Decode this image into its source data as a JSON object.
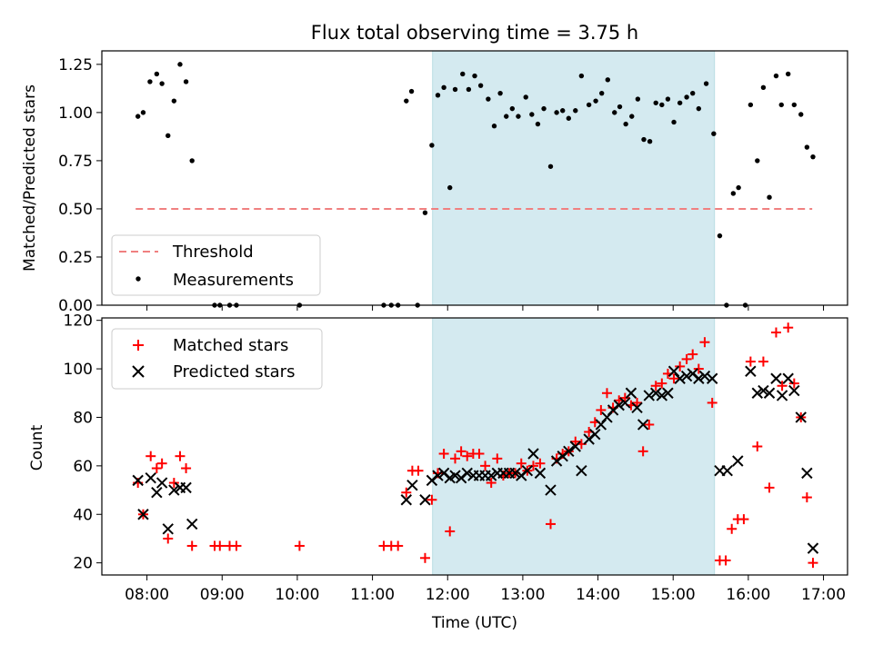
{
  "chart_data": {
    "type": "scatter",
    "title": "Flux total observing time = 3.75 h",
    "xlabel": "Time (UTC)",
    "x_ticks": [
      "08:00",
      "09:00",
      "10:00",
      "11:00",
      "12:00",
      "13:00",
      "14:00",
      "15:00",
      "16:00",
      "17:00"
    ],
    "xlim": [
      7.4,
      17.32
    ],
    "shaded_region": {
      "start": 11.8,
      "end": 15.55,
      "color": "#d4eaf0"
    },
    "panels": [
      {
        "ylabel": "Matched/Predicted stars",
        "ylim": [
          0,
          1.32
        ],
        "yticks": [
          "0.00",
          "0.25",
          "0.50",
          "0.75",
          "1.00",
          "1.25"
        ],
        "threshold": {
          "name": "Threshold",
          "value": 0.5,
          "x_range": [
            7.85,
            16.85
          ],
          "color": "#f08080"
        },
        "legend_position": "lower-left",
        "series": [
          {
            "name": "Measurements",
            "color": "#000000",
            "marker": "dot",
            "points": [
              [
                7.88,
                0.98
              ],
              [
                7.95,
                1.0
              ],
              [
                8.04,
                1.16
              ],
              [
                8.13,
                1.2
              ],
              [
                8.2,
                1.15
              ],
              [
                8.28,
                0.88
              ],
              [
                8.36,
                1.06
              ],
              [
                8.44,
                1.25
              ],
              [
                8.52,
                1.16
              ],
              [
                8.6,
                0.75
              ],
              [
                8.9,
                0.0
              ],
              [
                8.97,
                0.0
              ],
              [
                9.1,
                0.0
              ],
              [
                9.19,
                0.0
              ],
              [
                10.03,
                0.0
              ],
              [
                11.15,
                0.0
              ],
              [
                11.25,
                0.0
              ],
              [
                11.34,
                0.0
              ],
              [
                11.45,
                1.06
              ],
              [
                11.52,
                1.11
              ],
              [
                11.6,
                0.0
              ],
              [
                11.7,
                0.48
              ],
              [
                11.79,
                0.83
              ],
              [
                11.87,
                1.09
              ],
              [
                11.95,
                1.13
              ],
              [
                12.03,
                0.61
              ],
              [
                12.1,
                1.12
              ],
              [
                12.2,
                1.2
              ],
              [
                12.28,
                1.12
              ],
              [
                12.36,
                1.19
              ],
              [
                12.44,
                1.14
              ],
              [
                12.54,
                1.07
              ],
              [
                12.62,
                0.93
              ],
              [
                12.7,
                1.1
              ],
              [
                12.78,
                0.98
              ],
              [
                12.86,
                1.02
              ],
              [
                12.94,
                0.98
              ],
              [
                13.04,
                1.08
              ],
              [
                13.12,
                0.99
              ],
              [
                13.2,
                0.94
              ],
              [
                13.28,
                1.02
              ],
              [
                13.37,
                0.72
              ],
              [
                13.45,
                1.0
              ],
              [
                13.53,
                1.01
              ],
              [
                13.61,
                0.97
              ],
              [
                13.7,
                1.01
              ],
              [
                13.78,
                1.19
              ],
              [
                13.88,
                1.04
              ],
              [
                13.97,
                1.06
              ],
              [
                14.05,
                1.1
              ],
              [
                14.13,
                1.17
              ],
              [
                14.22,
                1.0
              ],
              [
                14.29,
                1.03
              ],
              [
                14.37,
                0.94
              ],
              [
                14.45,
                0.98
              ],
              [
                14.53,
                1.07
              ],
              [
                14.61,
                0.86
              ],
              [
                14.69,
                0.85
              ],
              [
                14.77,
                1.05
              ],
              [
                14.85,
                1.04
              ],
              [
                14.93,
                1.07
              ],
              [
                15.01,
                0.95
              ],
              [
                15.09,
                1.05
              ],
              [
                15.18,
                1.08
              ],
              [
                15.26,
                1.1
              ],
              [
                15.34,
                1.02
              ],
              [
                15.44,
                1.15
              ],
              [
                15.54,
                0.89
              ],
              [
                15.62,
                0.36
              ],
              [
                15.71,
                0.0
              ],
              [
                15.8,
                0.58
              ],
              [
                15.87,
                0.61
              ],
              [
                15.96,
                0.0
              ],
              [
                16.03,
                1.04
              ],
              [
                16.12,
                0.75
              ],
              [
                16.2,
                1.13
              ],
              [
                16.28,
                0.56
              ],
              [
                16.37,
                1.19
              ],
              [
                16.44,
                1.04
              ],
              [
                16.53,
                1.2
              ],
              [
                16.61,
                1.04
              ],
              [
                16.7,
                0.99
              ],
              [
                16.78,
                0.82
              ],
              [
                16.86,
                0.77
              ]
            ]
          }
        ]
      },
      {
        "ylabel": "Count",
        "ylim": [
          15,
          121
        ],
        "yticks": [
          "20",
          "40",
          "60",
          "80",
          "100",
          "120"
        ],
        "legend_position": "upper-left",
        "series": [
          {
            "name": "Matched stars",
            "color": "#ff0000",
            "marker": "plus",
            "points": [
              [
                7.88,
                53
              ],
              [
                7.95,
                40
              ],
              [
                8.05,
                64
              ],
              [
                8.13,
                59
              ],
              [
                8.2,
                61
              ],
              [
                8.28,
                30
              ],
              [
                8.36,
                53
              ],
              [
                8.44,
                64
              ],
              [
                8.52,
                59
              ],
              [
                8.6,
                27
              ],
              [
                8.9,
                27
              ],
              [
                8.97,
                27
              ],
              [
                9.1,
                27
              ],
              [
                9.19,
                27
              ],
              [
                10.03,
                27
              ],
              [
                11.15,
                27
              ],
              [
                11.25,
                27
              ],
              [
                11.34,
                27
              ],
              [
                11.45,
                49
              ],
              [
                11.53,
                58
              ],
              [
                11.61,
                58
              ],
              [
                11.7,
                22
              ],
              [
                11.79,
                46
              ],
              [
                11.87,
                57
              ],
              [
                11.95,
                65
              ],
              [
                12.03,
                33
              ],
              [
                12.1,
                63
              ],
              [
                12.18,
                66
              ],
              [
                12.26,
                64
              ],
              [
                12.34,
                65
              ],
              [
                12.42,
                65
              ],
              [
                12.5,
                60
              ],
              [
                12.58,
                53
              ],
              [
                12.66,
                63
              ],
              [
                12.74,
                56
              ],
              [
                12.82,
                57
              ],
              [
                12.9,
                57
              ],
              [
                12.98,
                61
              ],
              [
                13.06,
                58
              ],
              [
                13.14,
                60
              ],
              [
                13.23,
                61
              ],
              [
                13.37,
                36
              ],
              [
                13.45,
                63
              ],
              [
                13.53,
                65
              ],
              [
                13.61,
                66
              ],
              [
                13.7,
                70
              ],
              [
                13.78,
                69
              ],
              [
                13.88,
                74
              ],
              [
                13.96,
                78
              ],
              [
                14.04,
                83
              ],
              [
                14.12,
                90
              ],
              [
                14.2,
                84
              ],
              [
                14.28,
                87
              ],
              [
                14.36,
                88
              ],
              [
                14.44,
                85
              ],
              [
                14.52,
                86
              ],
              [
                14.6,
                66
              ],
              [
                14.68,
                77
              ],
              [
                14.77,
                93
              ],
              [
                14.85,
                94
              ],
              [
                14.93,
                98
              ],
              [
                15.01,
                96
              ],
              [
                15.09,
                101
              ],
              [
                15.18,
                104
              ],
              [
                15.26,
                106
              ],
              [
                15.34,
                100
              ],
              [
                15.42,
                111
              ],
              [
                15.52,
                86
              ],
              [
                15.62,
                21
              ],
              [
                15.7,
                21
              ],
              [
                15.78,
                34
              ],
              [
                15.86,
                38
              ],
              [
                15.94,
                38
              ],
              [
                16.03,
                103
              ],
              [
                16.12,
                68
              ],
              [
                16.2,
                103
              ],
              [
                16.28,
                51
              ],
              [
                16.37,
                115
              ],
              [
                16.45,
                93
              ],
              [
                16.53,
                117
              ],
              [
                16.61,
                94
              ],
              [
                16.7,
                80
              ],
              [
                16.78,
                47
              ],
              [
                16.86,
                20
              ]
            ]
          },
          {
            "name": "Predicted stars",
            "color": "#000000",
            "marker": "x",
            "points": [
              [
                7.88,
                54
              ],
              [
                7.95,
                40
              ],
              [
                8.05,
                55
              ],
              [
                8.13,
                49
              ],
              [
                8.2,
                53
              ],
              [
                8.28,
                34
              ],
              [
                8.36,
                50
              ],
              [
                8.44,
                51
              ],
              [
                8.52,
                51
              ],
              [
                8.6,
                36
              ],
              [
                11.45,
                46
              ],
              [
                11.53,
                52
              ],
              [
                11.7,
                46
              ],
              [
                11.79,
                54
              ],
              [
                11.87,
                56
              ],
              [
                11.95,
                57
              ],
              [
                12.03,
                55
              ],
              [
                12.1,
                56
              ],
              [
                12.18,
                55
              ],
              [
                12.26,
                57
              ],
              [
                12.34,
                56
              ],
              [
                12.42,
                56
              ],
              [
                12.5,
                56
              ],
              [
                12.58,
                56
              ],
              [
                12.66,
                57
              ],
              [
                12.74,
                57
              ],
              [
                12.82,
                57
              ],
              [
                12.9,
                57
              ],
              [
                12.98,
                56
              ],
              [
                13.06,
                58
              ],
              [
                13.14,
                65
              ],
              [
                13.23,
                57
              ],
              [
                13.37,
                50
              ],
              [
                13.45,
                62
              ],
              [
                13.53,
                64
              ],
              [
                13.61,
                66
              ],
              [
                13.7,
                68
              ],
              [
                13.78,
                58
              ],
              [
                13.88,
                71
              ],
              [
                13.96,
                73
              ],
              [
                14.04,
                77
              ],
              [
                14.12,
                80
              ],
              [
                14.2,
                83
              ],
              [
                14.28,
                85
              ],
              [
                14.36,
                86
              ],
              [
                14.44,
                90
              ],
              [
                14.52,
                84
              ],
              [
                14.6,
                77
              ],
              [
                14.68,
                89
              ],
              [
                14.77,
                90
              ],
              [
                14.85,
                89
              ],
              [
                14.93,
                90
              ],
              [
                15.01,
                99
              ],
              [
                15.09,
                96
              ],
              [
                15.18,
                97
              ],
              [
                15.26,
                98
              ],
              [
                15.34,
                96
              ],
              [
                15.42,
                97
              ],
              [
                15.52,
                96
              ],
              [
                15.62,
                58
              ],
              [
                15.72,
                58
              ],
              [
                15.86,
                62
              ],
              [
                16.03,
                99
              ],
              [
                16.12,
                90
              ],
              [
                16.2,
                91
              ],
              [
                16.28,
                90
              ],
              [
                16.37,
                96
              ],
              [
                16.45,
                89
              ],
              [
                16.53,
                96
              ],
              [
                16.61,
                91
              ],
              [
                16.7,
                80
              ],
              [
                16.78,
                57
              ],
              [
                16.86,
                26
              ]
            ]
          }
        ]
      }
    ]
  }
}
